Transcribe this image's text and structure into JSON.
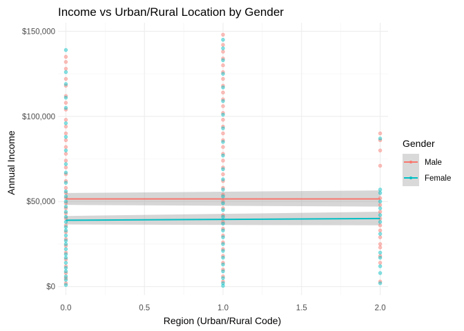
{
  "chart_data": {
    "type": "scatter",
    "title": "Income vs Urban/Rural Location by Gender",
    "xlabel": "Region (Urban/Rural Code)",
    "ylabel": "Annual Income",
    "xlim": [
      -0.05,
      2.05
    ],
    "ylim": [
      -5000,
      155000
    ],
    "x_ticks": [
      {
        "value": 0.0,
        "label": "0.0"
      },
      {
        "value": 0.5,
        "label": "0.5"
      },
      {
        "value": 1.0,
        "label": "1.0"
      },
      {
        "value": 1.5,
        "label": "1.5"
      },
      {
        "value": 2.0,
        "label": "2.0"
      }
    ],
    "y_ticks": [
      {
        "value": 0,
        "label": "$0"
      },
      {
        "value": 50000,
        "label": "$50,000"
      },
      {
        "value": 100000,
        "label": "$100,000"
      },
      {
        "value": 150000,
        "label": "$150,000"
      }
    ],
    "grid": true,
    "legend": {
      "title": "Gender",
      "position": "right",
      "entries": [
        "Male",
        "Female"
      ]
    },
    "series": [
      {
        "name": "Male",
        "color": "#F8766D",
        "trend": {
          "x": [
            0,
            2
          ],
          "y": [
            51500,
            51500
          ],
          "ci_low": [
            48000,
            47000
          ],
          "ci_high": [
            55000,
            56500
          ]
        },
        "points": [
          {
            "x": 0,
            "y": 135000
          },
          {
            "x": 0,
            "y": 132000
          },
          {
            "x": 0,
            "y": 128000
          },
          {
            "x": 0,
            "y": 122000
          },
          {
            "x": 0,
            "y": 118000
          },
          {
            "x": 0,
            "y": 112000
          },
          {
            "x": 0,
            "y": 108000
          },
          {
            "x": 0,
            "y": 104000
          },
          {
            "x": 0,
            "y": 98000
          },
          {
            "x": 0,
            "y": 94000
          },
          {
            "x": 0,
            "y": 90000
          },
          {
            "x": 0,
            "y": 86000
          },
          {
            "x": 0,
            "y": 82000
          },
          {
            "x": 0,
            "y": 78000
          },
          {
            "x": 0,
            "y": 74000
          },
          {
            "x": 0,
            "y": 70000
          },
          {
            "x": 0,
            "y": 66000
          },
          {
            "x": 0,
            "y": 62000
          },
          {
            "x": 0,
            "y": 58000
          },
          {
            "x": 0,
            "y": 55000
          },
          {
            "x": 0,
            "y": 52000
          },
          {
            "x": 0,
            "y": 49000
          },
          {
            "x": 0,
            "y": 46000
          },
          {
            "x": 0,
            "y": 43000
          },
          {
            "x": 0,
            "y": 40000
          },
          {
            "x": 0,
            "y": 36000
          },
          {
            "x": 0,
            "y": 32000
          },
          {
            "x": 0,
            "y": 28000
          },
          {
            "x": 0,
            "y": 24000
          },
          {
            "x": 0,
            "y": 20000
          },
          {
            "x": 0,
            "y": 16000
          },
          {
            "x": 0,
            "y": 12000
          },
          {
            "x": 0,
            "y": 8000
          },
          {
            "x": 0,
            "y": 5000
          },
          {
            "x": 0,
            "y": 2000
          },
          {
            "x": 1,
            "y": 148000
          },
          {
            "x": 1,
            "y": 142000
          },
          {
            "x": 1,
            "y": 138000
          },
          {
            "x": 1,
            "y": 134000
          },
          {
            "x": 1,
            "y": 130000
          },
          {
            "x": 1,
            "y": 126000
          },
          {
            "x": 1,
            "y": 122000
          },
          {
            "x": 1,
            "y": 118000
          },
          {
            "x": 1,
            "y": 114000
          },
          {
            "x": 1,
            "y": 110000
          },
          {
            "x": 1,
            "y": 106000
          },
          {
            "x": 1,
            "y": 102000
          },
          {
            "x": 1,
            "y": 98000
          },
          {
            "x": 1,
            "y": 94000
          },
          {
            "x": 1,
            "y": 90000
          },
          {
            "x": 1,
            "y": 86000
          },
          {
            "x": 1,
            "y": 82000
          },
          {
            "x": 1,
            "y": 78000
          },
          {
            "x": 1,
            "y": 74000
          },
          {
            "x": 1,
            "y": 70000
          },
          {
            "x": 1,
            "y": 66000
          },
          {
            "x": 1,
            "y": 62000
          },
          {
            "x": 1,
            "y": 58000
          },
          {
            "x": 1,
            "y": 54000
          },
          {
            "x": 1,
            "y": 50000
          },
          {
            "x": 1,
            "y": 46000
          },
          {
            "x": 1,
            "y": 42000
          },
          {
            "x": 1,
            "y": 38000
          },
          {
            "x": 1,
            "y": 34000
          },
          {
            "x": 1,
            "y": 30000
          },
          {
            "x": 1,
            "y": 26000
          },
          {
            "x": 1,
            "y": 22000
          },
          {
            "x": 1,
            "y": 18000
          },
          {
            "x": 1,
            "y": 14000
          },
          {
            "x": 1,
            "y": 10000
          },
          {
            "x": 1,
            "y": 6000
          },
          {
            "x": 1,
            "y": 3000
          },
          {
            "x": 2,
            "y": 90000
          },
          {
            "x": 2,
            "y": 86000
          },
          {
            "x": 2,
            "y": 80000
          },
          {
            "x": 2,
            "y": 71000
          },
          {
            "x": 2,
            "y": 52000
          },
          {
            "x": 2,
            "y": 48000
          },
          {
            "x": 2,
            "y": 44000
          },
          {
            "x": 2,
            "y": 40000
          },
          {
            "x": 2,
            "y": 36000
          },
          {
            "x": 2,
            "y": 33000
          },
          {
            "x": 2,
            "y": 29000
          },
          {
            "x": 2,
            "y": 25000
          },
          {
            "x": 2,
            "y": 23000
          },
          {
            "x": 2,
            "y": 18000
          },
          {
            "x": 2,
            "y": 14000
          },
          {
            "x": 2,
            "y": 3000
          }
        ]
      },
      {
        "name": "Female",
        "color": "#00BFC4",
        "trend": {
          "x": [
            0,
            2
          ],
          "y": [
            39000,
            40000
          ],
          "ci_low": [
            36500,
            36000
          ],
          "ci_high": [
            41500,
            44000
          ]
        },
        "points": [
          {
            "x": 0,
            "y": 139000
          },
          {
            "x": 0,
            "y": 126000
          },
          {
            "x": 0,
            "y": 119000
          },
          {
            "x": 0,
            "y": 111000
          },
          {
            "x": 0,
            "y": 105000
          },
          {
            "x": 0,
            "y": 96000
          },
          {
            "x": 0,
            "y": 88000
          },
          {
            "x": 0,
            "y": 80000
          },
          {
            "x": 0,
            "y": 72000
          },
          {
            "x": 0,
            "y": 67000
          },
          {
            "x": 0,
            "y": 61000
          },
          {
            "x": 0,
            "y": 56000
          },
          {
            "x": 0,
            "y": 53000
          },
          {
            "x": 0,
            "y": 50000
          },
          {
            "x": 0,
            "y": 47000
          },
          {
            "x": 0,
            "y": 44000
          },
          {
            "x": 0,
            "y": 41000
          },
          {
            "x": 0,
            "y": 38000
          },
          {
            "x": 0,
            "y": 35000
          },
          {
            "x": 0,
            "y": 33000
          },
          {
            "x": 0,
            "y": 30000
          },
          {
            "x": 0,
            "y": 27000
          },
          {
            "x": 0,
            "y": 25000
          },
          {
            "x": 0,
            "y": 22000
          },
          {
            "x": 0,
            "y": 19000
          },
          {
            "x": 0,
            "y": 17000
          },
          {
            "x": 0,
            "y": 14000
          },
          {
            "x": 0,
            "y": 11000
          },
          {
            "x": 0,
            "y": 9000
          },
          {
            "x": 0,
            "y": 6000
          },
          {
            "x": 0,
            "y": 4000
          },
          {
            "x": 0,
            "y": 1000
          },
          {
            "x": 1,
            "y": 145000
          },
          {
            "x": 1,
            "y": 140000
          },
          {
            "x": 1,
            "y": 133000
          },
          {
            "x": 1,
            "y": 125000
          },
          {
            "x": 1,
            "y": 117000
          },
          {
            "x": 1,
            "y": 109000
          },
          {
            "x": 1,
            "y": 101000
          },
          {
            "x": 1,
            "y": 93000
          },
          {
            "x": 1,
            "y": 85000
          },
          {
            "x": 1,
            "y": 77000
          },
          {
            "x": 1,
            "y": 69000
          },
          {
            "x": 1,
            "y": 63000
          },
          {
            "x": 1,
            "y": 57000
          },
          {
            "x": 1,
            "y": 53000
          },
          {
            "x": 1,
            "y": 49000
          },
          {
            "x": 1,
            "y": 45000
          },
          {
            "x": 1,
            "y": 41000
          },
          {
            "x": 1,
            "y": 37000
          },
          {
            "x": 1,
            "y": 33000
          },
          {
            "x": 1,
            "y": 29000
          },
          {
            "x": 1,
            "y": 25000
          },
          {
            "x": 1,
            "y": 21000
          },
          {
            "x": 1,
            "y": 17000
          },
          {
            "x": 1,
            "y": 13000
          },
          {
            "x": 1,
            "y": 9000
          },
          {
            "x": 1,
            "y": 5000
          },
          {
            "x": 1,
            "y": 2000
          },
          {
            "x": 1,
            "y": 500
          },
          {
            "x": 2,
            "y": 87000
          },
          {
            "x": 2,
            "y": 57000
          },
          {
            "x": 2,
            "y": 55000
          },
          {
            "x": 2,
            "y": 50000
          },
          {
            "x": 2,
            "y": 46000
          },
          {
            "x": 2,
            "y": 42000
          },
          {
            "x": 2,
            "y": 38000
          },
          {
            "x": 2,
            "y": 31000
          },
          {
            "x": 2,
            "y": 20000
          },
          {
            "x": 2,
            "y": 17000
          },
          {
            "x": 2,
            "y": 12000
          },
          {
            "x": 2,
            "y": 8000
          },
          {
            "x": 2,
            "y": 2000
          }
        ]
      }
    ]
  }
}
